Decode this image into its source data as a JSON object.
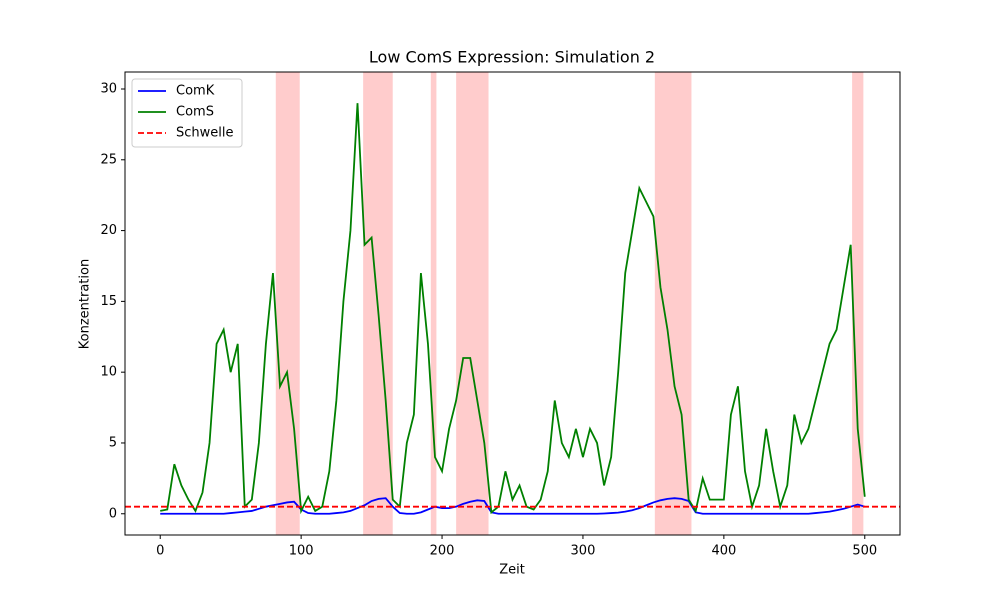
{
  "chart_data": {
    "type": "line",
    "title": "Low ComS Expression: Simulation 2",
    "x_label": "Zeit",
    "y_label": "Konzentration",
    "x": [
      0,
      5,
      10,
      15,
      20,
      25,
      30,
      35,
      40,
      45,
      50,
      55,
      60,
      65,
      70,
      75,
      80,
      85,
      90,
      95,
      100,
      105,
      110,
      115,
      120,
      125,
      130,
      135,
      140,
      145,
      150,
      155,
      160,
      165,
      170,
      175,
      180,
      185,
      190,
      195,
      200,
      205,
      210,
      215,
      220,
      225,
      230,
      235,
      240,
      245,
      250,
      255,
      260,
      265,
      270,
      275,
      280,
      285,
      290,
      295,
      300,
      305,
      310,
      315,
      320,
      325,
      330,
      335,
      340,
      345,
      350,
      355,
      360,
      365,
      370,
      375,
      380,
      385,
      390,
      395,
      400,
      405,
      410,
      415,
      420,
      425,
      430,
      435,
      440,
      445,
      450,
      455,
      460,
      465,
      470,
      475,
      480,
      485,
      490,
      495,
      500
    ],
    "series": [
      {
        "name": "ComK",
        "color": "#0000ff",
        "values": [
          0,
          0,
          0,
          0,
          0,
          0,
          0,
          0,
          0,
          0,
          0.05,
          0.1,
          0.15,
          0.2,
          0.35,
          0.5,
          0.6,
          0.7,
          0.8,
          0.85,
          0.3,
          0.05,
          0,
          0,
          0,
          0.05,
          0.1,
          0.2,
          0.4,
          0.6,
          0.9,
          1.05,
          1.1,
          0.5,
          0.05,
          0,
          0,
          0.1,
          0.3,
          0.5,
          0.4,
          0.4,
          0.5,
          0.7,
          0.85,
          0.95,
          0.9,
          0.1,
          0,
          0,
          0,
          0,
          0,
          0,
          0,
          0,
          0,
          0,
          0,
          0,
          0,
          0,
          0,
          0.02,
          0.05,
          0.08,
          0.15,
          0.25,
          0.4,
          0.6,
          0.8,
          0.95,
          1.05,
          1.1,
          1.05,
          0.9,
          0.1,
          0,
          0,
          0,
          0,
          0,
          0,
          0,
          0,
          0,
          0,
          0,
          0,
          0,
          0,
          0,
          0,
          0.05,
          0.1,
          0.15,
          0.25,
          0.35,
          0.5,
          0.65,
          0.5
        ]
      },
      {
        "name": "ComS",
        "color": "#008000",
        "values": [
          0.2,
          0.3,
          3.5,
          2.0,
          1.0,
          0.2,
          1.5,
          5,
          12,
          13,
          10,
          12,
          0.5,
          1,
          5,
          12,
          17,
          9,
          10,
          6,
          0.2,
          1.2,
          0.2,
          0.5,
          3,
          8,
          15,
          20,
          29,
          19,
          19.5,
          14,
          8,
          1,
          0.5,
          5,
          7,
          17,
          12,
          4,
          3,
          6,
          8,
          11,
          11,
          8,
          5,
          0.1,
          0.5,
          3,
          1,
          2,
          0.5,
          0.3,
          1,
          3,
          8,
          5,
          4,
          6,
          4,
          6,
          5,
          2,
          4,
          10,
          17,
          20,
          23,
          22,
          21,
          16,
          13,
          9,
          7,
          1,
          0.2,
          2.5,
          1,
          1,
          1,
          7,
          9,
          3,
          0.5,
          2,
          6,
          3,
          0.5,
          2,
          7,
          5,
          6,
          8,
          10,
          12,
          13,
          16,
          19,
          6,
          1.2
        ]
      }
    ],
    "threshold": {
      "name": "Schwelle",
      "value": 0.5,
      "color": "#ff0000"
    },
    "spans": [
      [
        82,
        99
      ],
      [
        144,
        165
      ],
      [
        192,
        196
      ],
      [
        210,
        233
      ],
      [
        351,
        377
      ],
      [
        491,
        499
      ]
    ],
    "span_color": "#ff0000",
    "xlim": [
      -25,
      525
    ],
    "ylim": [
      -1.5,
      31.2
    ],
    "xticks": [
      0,
      100,
      200,
      300,
      400,
      500
    ],
    "yticks": [
      0,
      5,
      10,
      15,
      20,
      25,
      30
    ],
    "legend": "upper left"
  }
}
